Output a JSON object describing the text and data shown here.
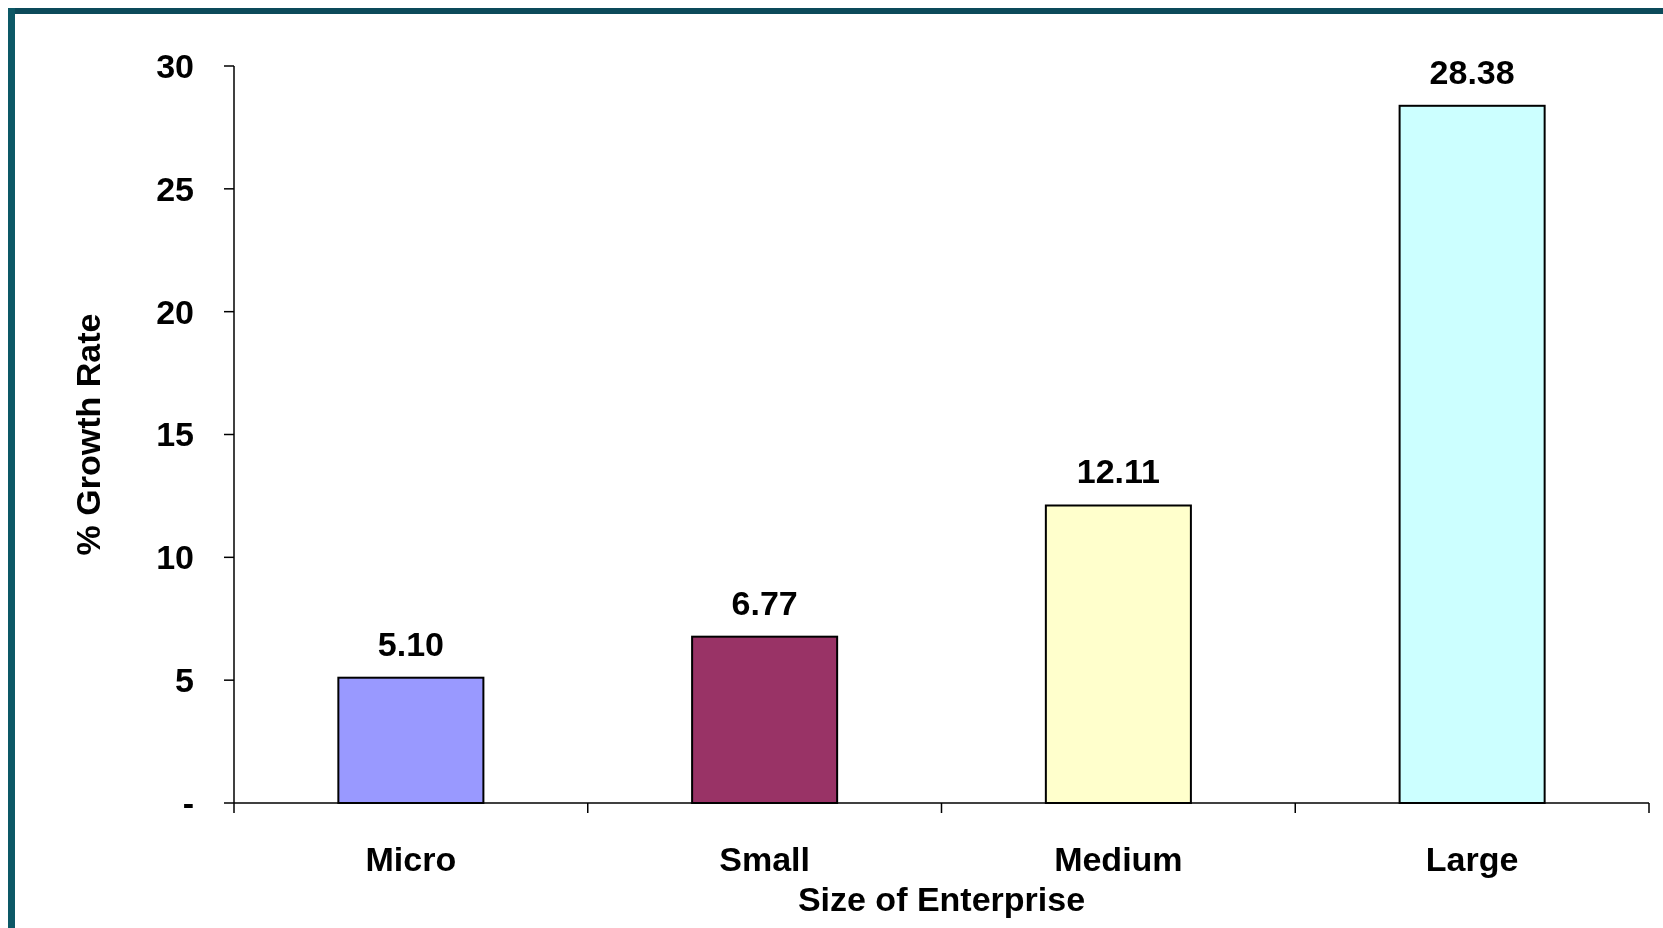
{
  "chart_data": {
    "type": "bar",
    "xlabel": "Size of Enterprise",
    "ylabel": "% Growth Rate",
    "categories": [
      "Micro",
      "Small",
      "Medium",
      "Large"
    ],
    "values": [
      5.1,
      6.77,
      12.11,
      28.38
    ],
    "value_labels": [
      "5.10",
      "6.77",
      "12.11",
      "28.38"
    ],
    "colors": [
      "#9999ff",
      "#993366",
      "#ffffcc",
      "#ccffff"
    ],
    "ylim": [
      0,
      30
    ],
    "yticks": [
      {
        "value": 0,
        "label": "-"
      },
      5,
      10,
      15,
      20,
      25,
      30
    ],
    "grid": false
  }
}
